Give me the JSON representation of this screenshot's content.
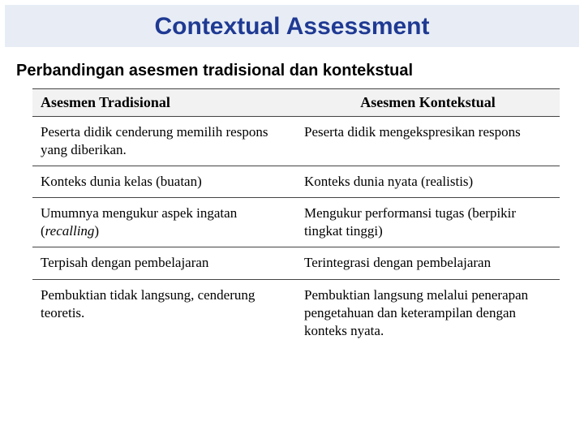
{
  "title": "Contextual Assessment",
  "title_color": "#1f3a93",
  "title_bg": "#e8edf5",
  "title_fontsize": 30,
  "subtitle": "Perbandingan asesmen tradisional dan kontekstual",
  "subtitle_fontsize": 20,
  "table": {
    "header_bg": "#f2f2f2",
    "border_color": "#444444",
    "font_family": "Times New Roman",
    "cell_fontsize": 17,
    "header_fontsize": 18,
    "columns": [
      "Asesmen Tradisional",
      "Asesmen Kontekstual"
    ],
    "rows": [
      [
        "Peserta didik cenderung memilih respons yang diberikan.",
        "Peserta didik mengekspresikan respons"
      ],
      [
        "Konteks dunia kelas (buatan)",
        "Konteks dunia nyata (realistis)"
      ],
      [
        "Umumnya mengukur aspek ingatan (recalling)",
        "Mengukur performansi tugas (berpikir tingkat tinggi)"
      ],
      [
        "Terpisah dengan pembelajaran",
        "Terintegrasi dengan pembelajaran"
      ],
      [
        "Pembuktian tidak langsung, cenderung teoretis.",
        "Pembuktian langsung melalui penerapan pengetahuan dan keterampilan dengan konteks nyata."
      ]
    ],
    "italic_cells": [
      [
        2,
        0,
        "recalling"
      ]
    ]
  },
  "background_color": "#ffffff"
}
